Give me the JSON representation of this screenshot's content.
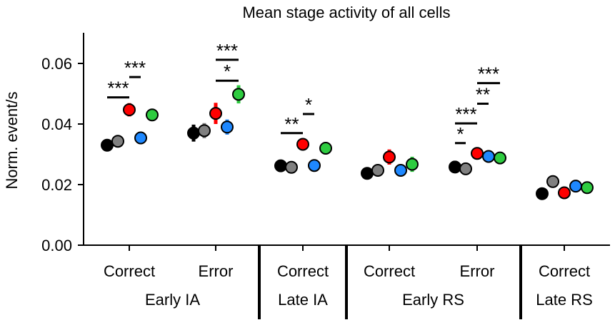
{
  "chart_data": {
    "type": "scatter",
    "title": "Mean stage activity of all cells",
    "ylabel": "Norm. event/s",
    "xlabel": "",
    "ylim": [
      0,
      0.07
    ],
    "yticks": [
      0.0,
      0.02,
      0.04,
      0.06
    ],
    "ytick_labels": [
      "0.00",
      "0.02",
      "0.04",
      "0.06"
    ],
    "grid": false,
    "legend": "none",
    "colors": [
      "#000000",
      "#808080",
      "#ff0000",
      "#1e88ff",
      "#2ecc40"
    ],
    "categories": [
      "Correct",
      "Error",
      "Correct",
      "Correct",
      "Error",
      "Correct"
    ],
    "groups": [
      {
        "label": "Early IA",
        "categories": [
          0,
          1
        ]
      },
      {
        "label": "Late IA",
        "categories": [
          2
        ]
      },
      {
        "label": "Early RS",
        "categories": [
          3,
          4
        ]
      },
      {
        "label": "Late RS",
        "categories": [
          5
        ]
      }
    ],
    "points": [
      [
        {
          "y": 0.033,
          "err": 0.0015
        },
        {
          "y": 0.0343,
          "err": 0.002
        },
        {
          "y": 0.0447,
          "err": 0.0022
        },
        {
          "y": 0.0354,
          "err": 0.002
        },
        {
          "y": 0.043,
          "err": 0.002
        }
      ],
      [
        {
          "y": 0.037,
          "err": 0.0028
        },
        {
          "y": 0.0378,
          "err": 0.0025
        },
        {
          "y": 0.0435,
          "err": 0.0035
        },
        {
          "y": 0.039,
          "err": 0.0025
        },
        {
          "y": 0.0498,
          "err": 0.003
        }
      ],
      [
        {
          "y": 0.0262,
          "err": 0.001
        },
        {
          "y": 0.0257,
          "err": 0.001
        },
        {
          "y": 0.0333,
          "err": 0.0018
        },
        {
          "y": 0.0263,
          "err": 0.0012
        },
        {
          "y": 0.032,
          "err": 0.0015
        }
      ],
      [
        {
          "y": 0.0237,
          "err": 0.0015
        },
        {
          "y": 0.0247,
          "err": 0.0015
        },
        {
          "y": 0.0291,
          "err": 0.0025
        },
        {
          "y": 0.0247,
          "err": 0.0015
        },
        {
          "y": 0.0267,
          "err": 0.0025
        }
      ],
      [
        {
          "y": 0.0258,
          "err": 0.002
        },
        {
          "y": 0.0252,
          "err": 0.0012
        },
        {
          "y": 0.0303,
          "err": 0.0018
        },
        {
          "y": 0.0293,
          "err": 0.0018
        },
        {
          "y": 0.0288,
          "err": 0.0015
        }
      ],
      [
        {
          "y": 0.017,
          "err": 0.0008
        },
        {
          "y": 0.021,
          "err": 0.0008
        },
        {
          "y": 0.0173,
          "err": 0.0008
        },
        {
          "y": 0.0195,
          "err": 0.0008
        },
        {
          "y": 0.019,
          "err": 0.0008
        }
      ]
    ],
    "annotations": [
      {
        "category": 0,
        "from": 0,
        "to": 2,
        "y": 0.0488,
        "label": "***"
      },
      {
        "category": 0,
        "from": 2,
        "to": 3,
        "y": 0.0555,
        "label": "***"
      },
      {
        "category": 1,
        "from": 2,
        "to": 4,
        "y": 0.0543,
        "label": "*"
      },
      {
        "category": 1,
        "from": 2,
        "to": 4,
        "y": 0.0612,
        "label": "***"
      },
      {
        "category": 2,
        "from": 0,
        "to": 2,
        "y": 0.037,
        "label": "**"
      },
      {
        "category": 2,
        "from": 2,
        "to": 3,
        "y": 0.0433,
        "label": "*"
      },
      {
        "category": 4,
        "from": 0,
        "to": 1,
        "y": 0.0337,
        "label": "*"
      },
      {
        "category": 4,
        "from": 0,
        "to": 2,
        "y": 0.0402,
        "label": "***"
      },
      {
        "category": 4,
        "from": 2,
        "to": 3,
        "y": 0.0467,
        "label": "**"
      },
      {
        "category": 4,
        "from": 2,
        "to": 4,
        "y": 0.0535,
        "label": "***"
      }
    ]
  }
}
